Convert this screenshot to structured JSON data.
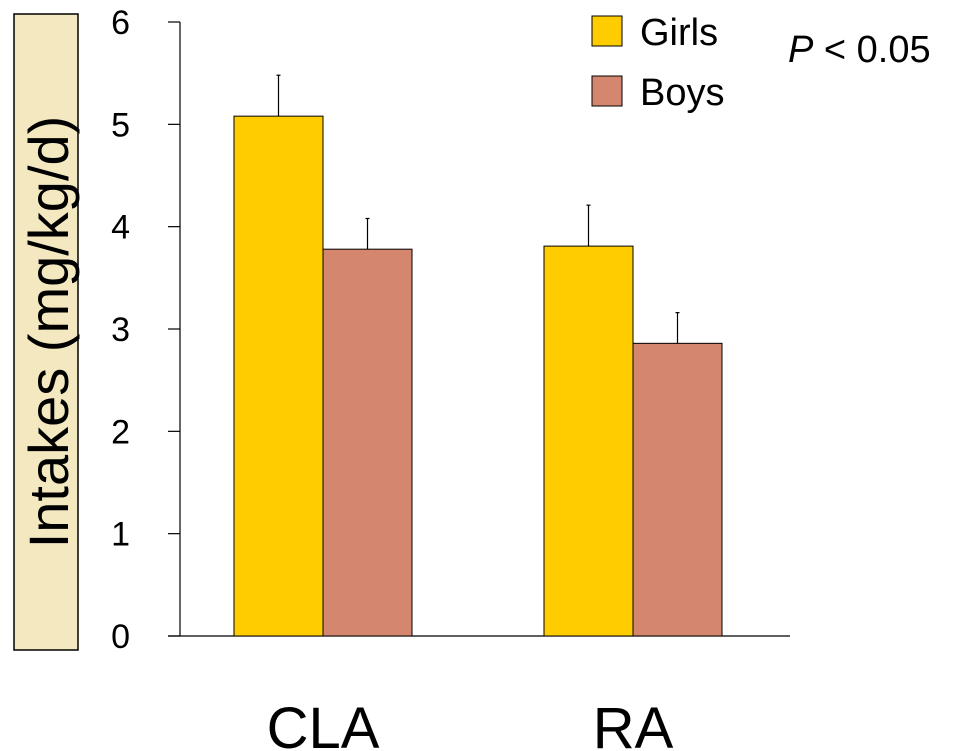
{
  "chart_data": {
    "type": "bar",
    "categories": [
      "CLA",
      "RA"
    ],
    "series": [
      {
        "name": "Girls",
        "values": [
          5.08,
          3.81
        ],
        "errors": [
          0.4,
          0.4
        ],
        "color": "#ffcc00"
      },
      {
        "name": "Boys",
        "values": [
          3.78,
          2.86
        ],
        "errors": [
          0.3,
          0.3
        ],
        "color": "#d4876e"
      }
    ],
    "ylabel": "Intakes (mg/kg/d)",
    "xlabel": "",
    "ylim": [
      0,
      6
    ],
    "yticks": [
      "0",
      "1",
      "2",
      "3",
      "4",
      "5",
      "6"
    ],
    "legend_position": "top-right",
    "annotation": {
      "italic": "P",
      "rest": " < 0.05"
    },
    "grid": false
  }
}
